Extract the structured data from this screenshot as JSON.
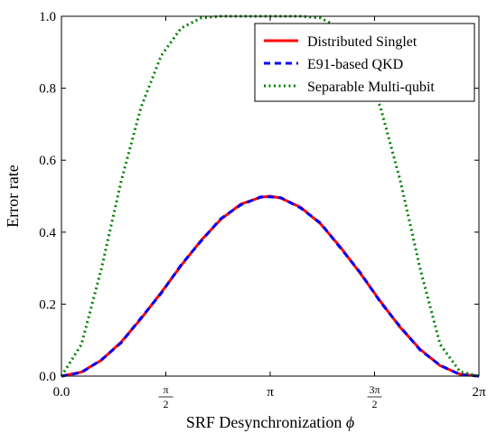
{
  "chart_data": {
    "type": "line",
    "title": "",
    "xlabel": "SRF Desynchronization",
    "xlabel_symbol": "ϕ",
    "ylabel": "Error rate",
    "xlim": [
      0,
      6.283185307
    ],
    "ylim": [
      0,
      1
    ],
    "grid": false,
    "legend_position": "top-right",
    "x_ticks": [
      {
        "value": 0,
        "label": "0.0"
      },
      {
        "value": 1.570796327,
        "label": "π/2",
        "num": "π",
        "den": "2"
      },
      {
        "value": 3.141592654,
        "label": "π"
      },
      {
        "value": 4.71238898,
        "label": "3π/2",
        "num": "3π",
        "den": "2"
      },
      {
        "value": 6.283185307,
        "label": "2π"
      }
    ],
    "y_ticks": [
      {
        "value": 0.0,
        "label": "0.0"
      },
      {
        "value": 0.2,
        "label": "0.2"
      },
      {
        "value": 0.4,
        "label": "0.4"
      },
      {
        "value": 0.6,
        "label": "0.6"
      },
      {
        "value": 0.8,
        "label": "0.8"
      },
      {
        "value": 1.0,
        "label": "1.0"
      }
    ],
    "x": [
      0.0,
      0.3,
      0.6,
      0.9,
      1.2,
      1.5,
      1.8,
      2.1,
      2.4,
      2.7,
      3.0,
      3.14,
      3.3,
      3.6,
      3.9,
      4.2,
      4.5,
      4.8,
      5.1,
      5.4,
      5.7,
      6.0,
      6.283
    ],
    "series": [
      {
        "name": "Distributed Singlet",
        "color": "#ff0000",
        "style": "solid",
        "values": [
          0.0,
          0.011,
          0.044,
          0.095,
          0.16,
          0.232,
          0.307,
          0.377,
          0.436,
          0.478,
          0.497,
          0.5,
          0.495,
          0.469,
          0.423,
          0.358,
          0.285,
          0.208,
          0.135,
          0.074,
          0.029,
          0.005,
          0.0
        ]
      },
      {
        "name": "E91-based QKD",
        "color": "#0000ff",
        "style": "dashed",
        "values": [
          0.0,
          0.01,
          0.045,
          0.093,
          0.162,
          0.23,
          0.309,
          0.375,
          0.438,
          0.476,
          0.498,
          0.498,
          0.496,
          0.467,
          0.425,
          0.356,
          0.287,
          0.206,
          0.137,
          0.072,
          0.03,
          0.004,
          0.0
        ]
      },
      {
        "name": "Separable Multi-qubit",
        "color": "#008000",
        "style": "dotted",
        "values": [
          0.0,
          0.088,
          0.297,
          0.543,
          0.748,
          0.89,
          0.967,
          0.995,
          1.0,
          1.0,
          1.0,
          1.0,
          1.0,
          1.0,
          0.995,
          0.967,
          0.89,
          0.748,
          0.543,
          0.297,
          0.088,
          0.012,
          0.0
        ]
      }
    ]
  }
}
